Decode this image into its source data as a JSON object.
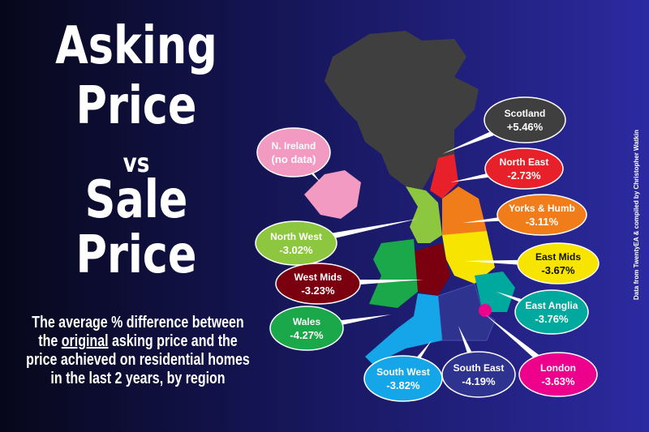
{
  "header": {
    "title_lines": [
      "Asking",
      "Price",
      "vs",
      "Sale",
      "Price"
    ],
    "subtitle_lines": [
      [
        "The average % difference between"
      ],
      [
        "the ",
        "original",
        " asking price and the"
      ],
      [
        "price achieved on residential homes"
      ],
      [
        "in the last 2 years, by region"
      ]
    ]
  },
  "regions": [
    {
      "name": "Scotland",
      "value": "+5.46%",
      "color": "#3f3f3f"
    },
    {
      "name": "N. Ireland",
      "value": "(no data)",
      "color": "#f29ac2"
    },
    {
      "name": "North East",
      "value": "-2.73%",
      "color": "#e8202a"
    },
    {
      "name": "Yorks & Humb",
      "value": "-3.11%",
      "color": "#f07d1a"
    },
    {
      "name": "North West",
      "value": "-3.02%",
      "color": "#8dc63f"
    },
    {
      "name": "East Mids",
      "value": "-3.67%",
      "color": "#f7e400"
    },
    {
      "name": "West Mids",
      "value": "-3.23%",
      "color": "#7a0010"
    },
    {
      "name": "Wales",
      "value": "-4.27%",
      "color": "#1aa84a"
    },
    {
      "name": "East Anglia",
      "value": "-3.76%",
      "color": "#00a99d"
    },
    {
      "name": "London",
      "value": "-3.63%",
      "color": "#ec008c"
    },
    {
      "name": "South West",
      "value": "-3.82%",
      "color": "#14a6e8"
    },
    {
      "name": "South East",
      "value": "-4.19%",
      "color": "#2f3390"
    }
  ],
  "credit": "Data from TwentyEA & compiled by Christopher Watkin"
}
